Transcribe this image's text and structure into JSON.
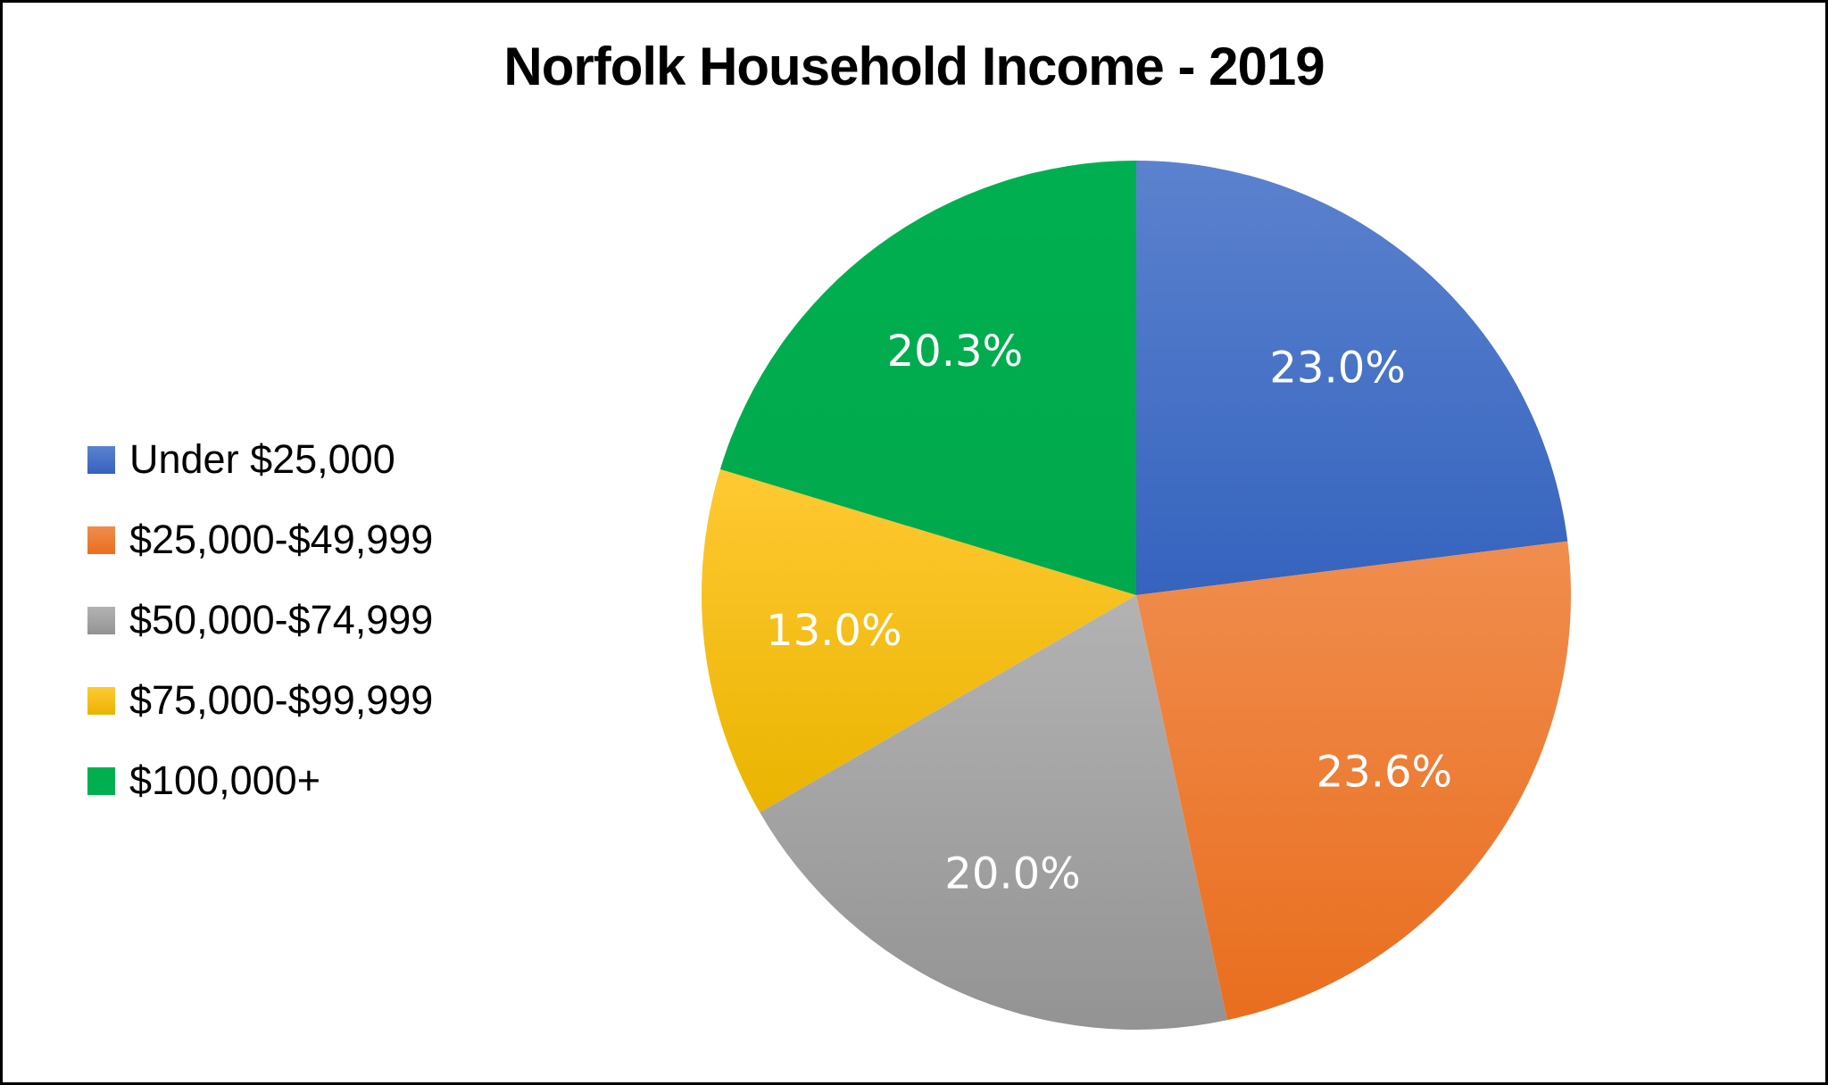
{
  "title": "Norfolk Household Income - 2019",
  "legend": [
    {
      "label": "Under $25,000",
      "color": "#4472C4"
    },
    {
      "label": "$25,000-$49,999",
      "color": "#ED7D31"
    },
    {
      "label": "$50,000-$74,999",
      "color": "#A5A5A5"
    },
    {
      "label": "$75,000-$99,999",
      "color": "#FFC000"
    },
    {
      "label": "$100,000+",
      "color": "#00B050"
    }
  ],
  "labels": [
    "23.0%",
    "23.6%",
    "20.0%",
    "13.0%",
    "20.3%"
  ],
  "chart_data": {
    "type": "pie",
    "title": "Norfolk Household Income - 2019",
    "categories": [
      "Under $25,000",
      "$25,000-$49,999",
      "$50,000-$74,999",
      "$75,000-$99,999",
      "$100,000+"
    ],
    "values": [
      23.0,
      23.6,
      20.0,
      13.0,
      20.3
    ],
    "unit": "%",
    "colors": [
      "#4472C4",
      "#ED7D31",
      "#A5A5A5",
      "#FFC000",
      "#00B050"
    ],
    "start_angle": "12 o'clock, clockwise",
    "legend_position": "left",
    "data_labels": [
      "23.0%",
      "23.6%",
      "20.0%",
      "13.0%",
      "20.3%"
    ]
  }
}
